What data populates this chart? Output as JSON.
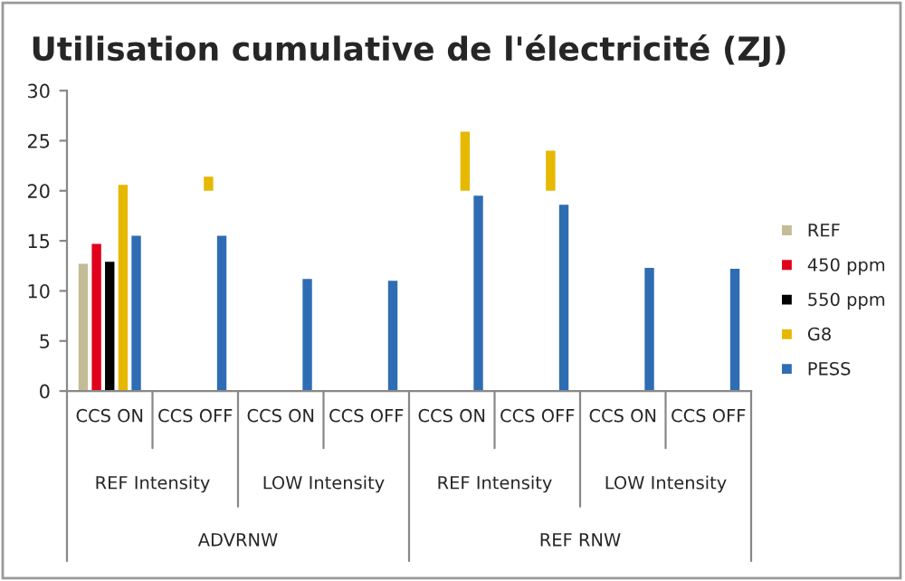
{
  "chart_data": {
    "type": "bar",
    "title": "Utilisation cumulative de l'électricité (ZJ)",
    "categories": [
      "CCS ON",
      "CCS OFF",
      "CCS ON",
      "CCS OFF",
      "CCS ON",
      "CCS OFF",
      "CCS ON",
      "CCS OFF"
    ],
    "series": [
      {
        "name": "REF",
        "color": "#c4bc96",
        "values": [
          12.7,
          null,
          null,
          null,
          null,
          null,
          null,
          null
        ]
      },
      {
        "name": "450 ppm",
        "color": "#e0001b",
        "values": [
          14.7,
          null,
          null,
          null,
          null,
          null,
          null,
          null
        ]
      },
      {
        "name": "550 ppm",
        "color": "#000000",
        "values": [
          12.9,
          null,
          null,
          null,
          null,
          null,
          null,
          null
        ]
      },
      {
        "name": "G8",
        "color": "#e6b800",
        "values": [
          20.6,
          1.4,
          null,
          null,
          5.9,
          4.0,
          null,
          null
        ],
        "base": [
          0,
          20,
          null,
          null,
          20,
          20,
          null,
          null
        ]
      },
      {
        "name": "PESS",
        "color": "#2e6db4",
        "values": [
          15.5,
          15.5,
          11.2,
          11.0,
          19.5,
          18.6,
          12.3,
          12.2
        ]
      }
    ],
    "annotations": [
      "REF Intensity",
      "LOW Intensity",
      "REF Intensity",
      "LOW Intensity",
      "ADVRNW",
      "REF RNW"
    ],
    "ylim": [
      0,
      30
    ],
    "yticks": [
      0,
      5,
      10,
      15,
      20,
      25,
      30
    ],
    "legend": "right"
  }
}
